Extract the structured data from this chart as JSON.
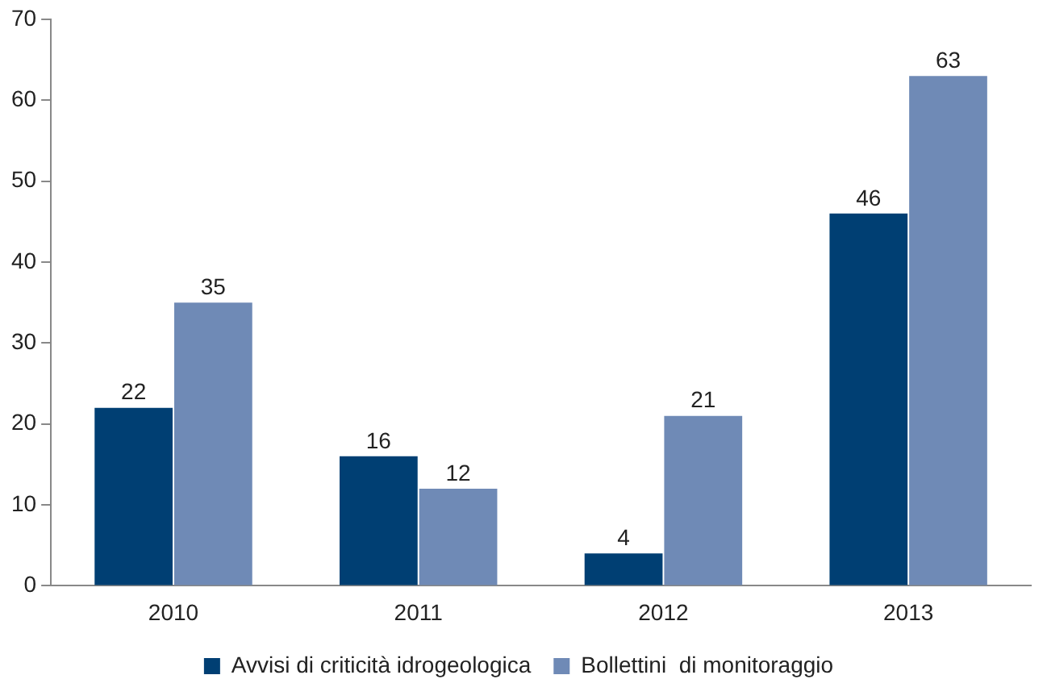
{
  "chart_data": {
    "type": "bar",
    "categories": [
      "2010",
      "2011",
      "2012",
      "2013"
    ],
    "series": [
      {
        "name": "Avvisi di criticità idrogeologica",
        "color": "#003f73",
        "values": [
          22,
          16,
          4,
          46
        ]
      },
      {
        "name": "Bollettini  di monitoraggio",
        "color": "#6f8ab6",
        "values": [
          35,
          12,
          21,
          63
        ]
      }
    ],
    "ylim": [
      0,
      70
    ],
    "yticks": [
      0,
      10,
      20,
      30,
      40,
      50,
      60,
      70
    ],
    "grid": false,
    "legend": "bottom",
    "data_labels": true
  }
}
